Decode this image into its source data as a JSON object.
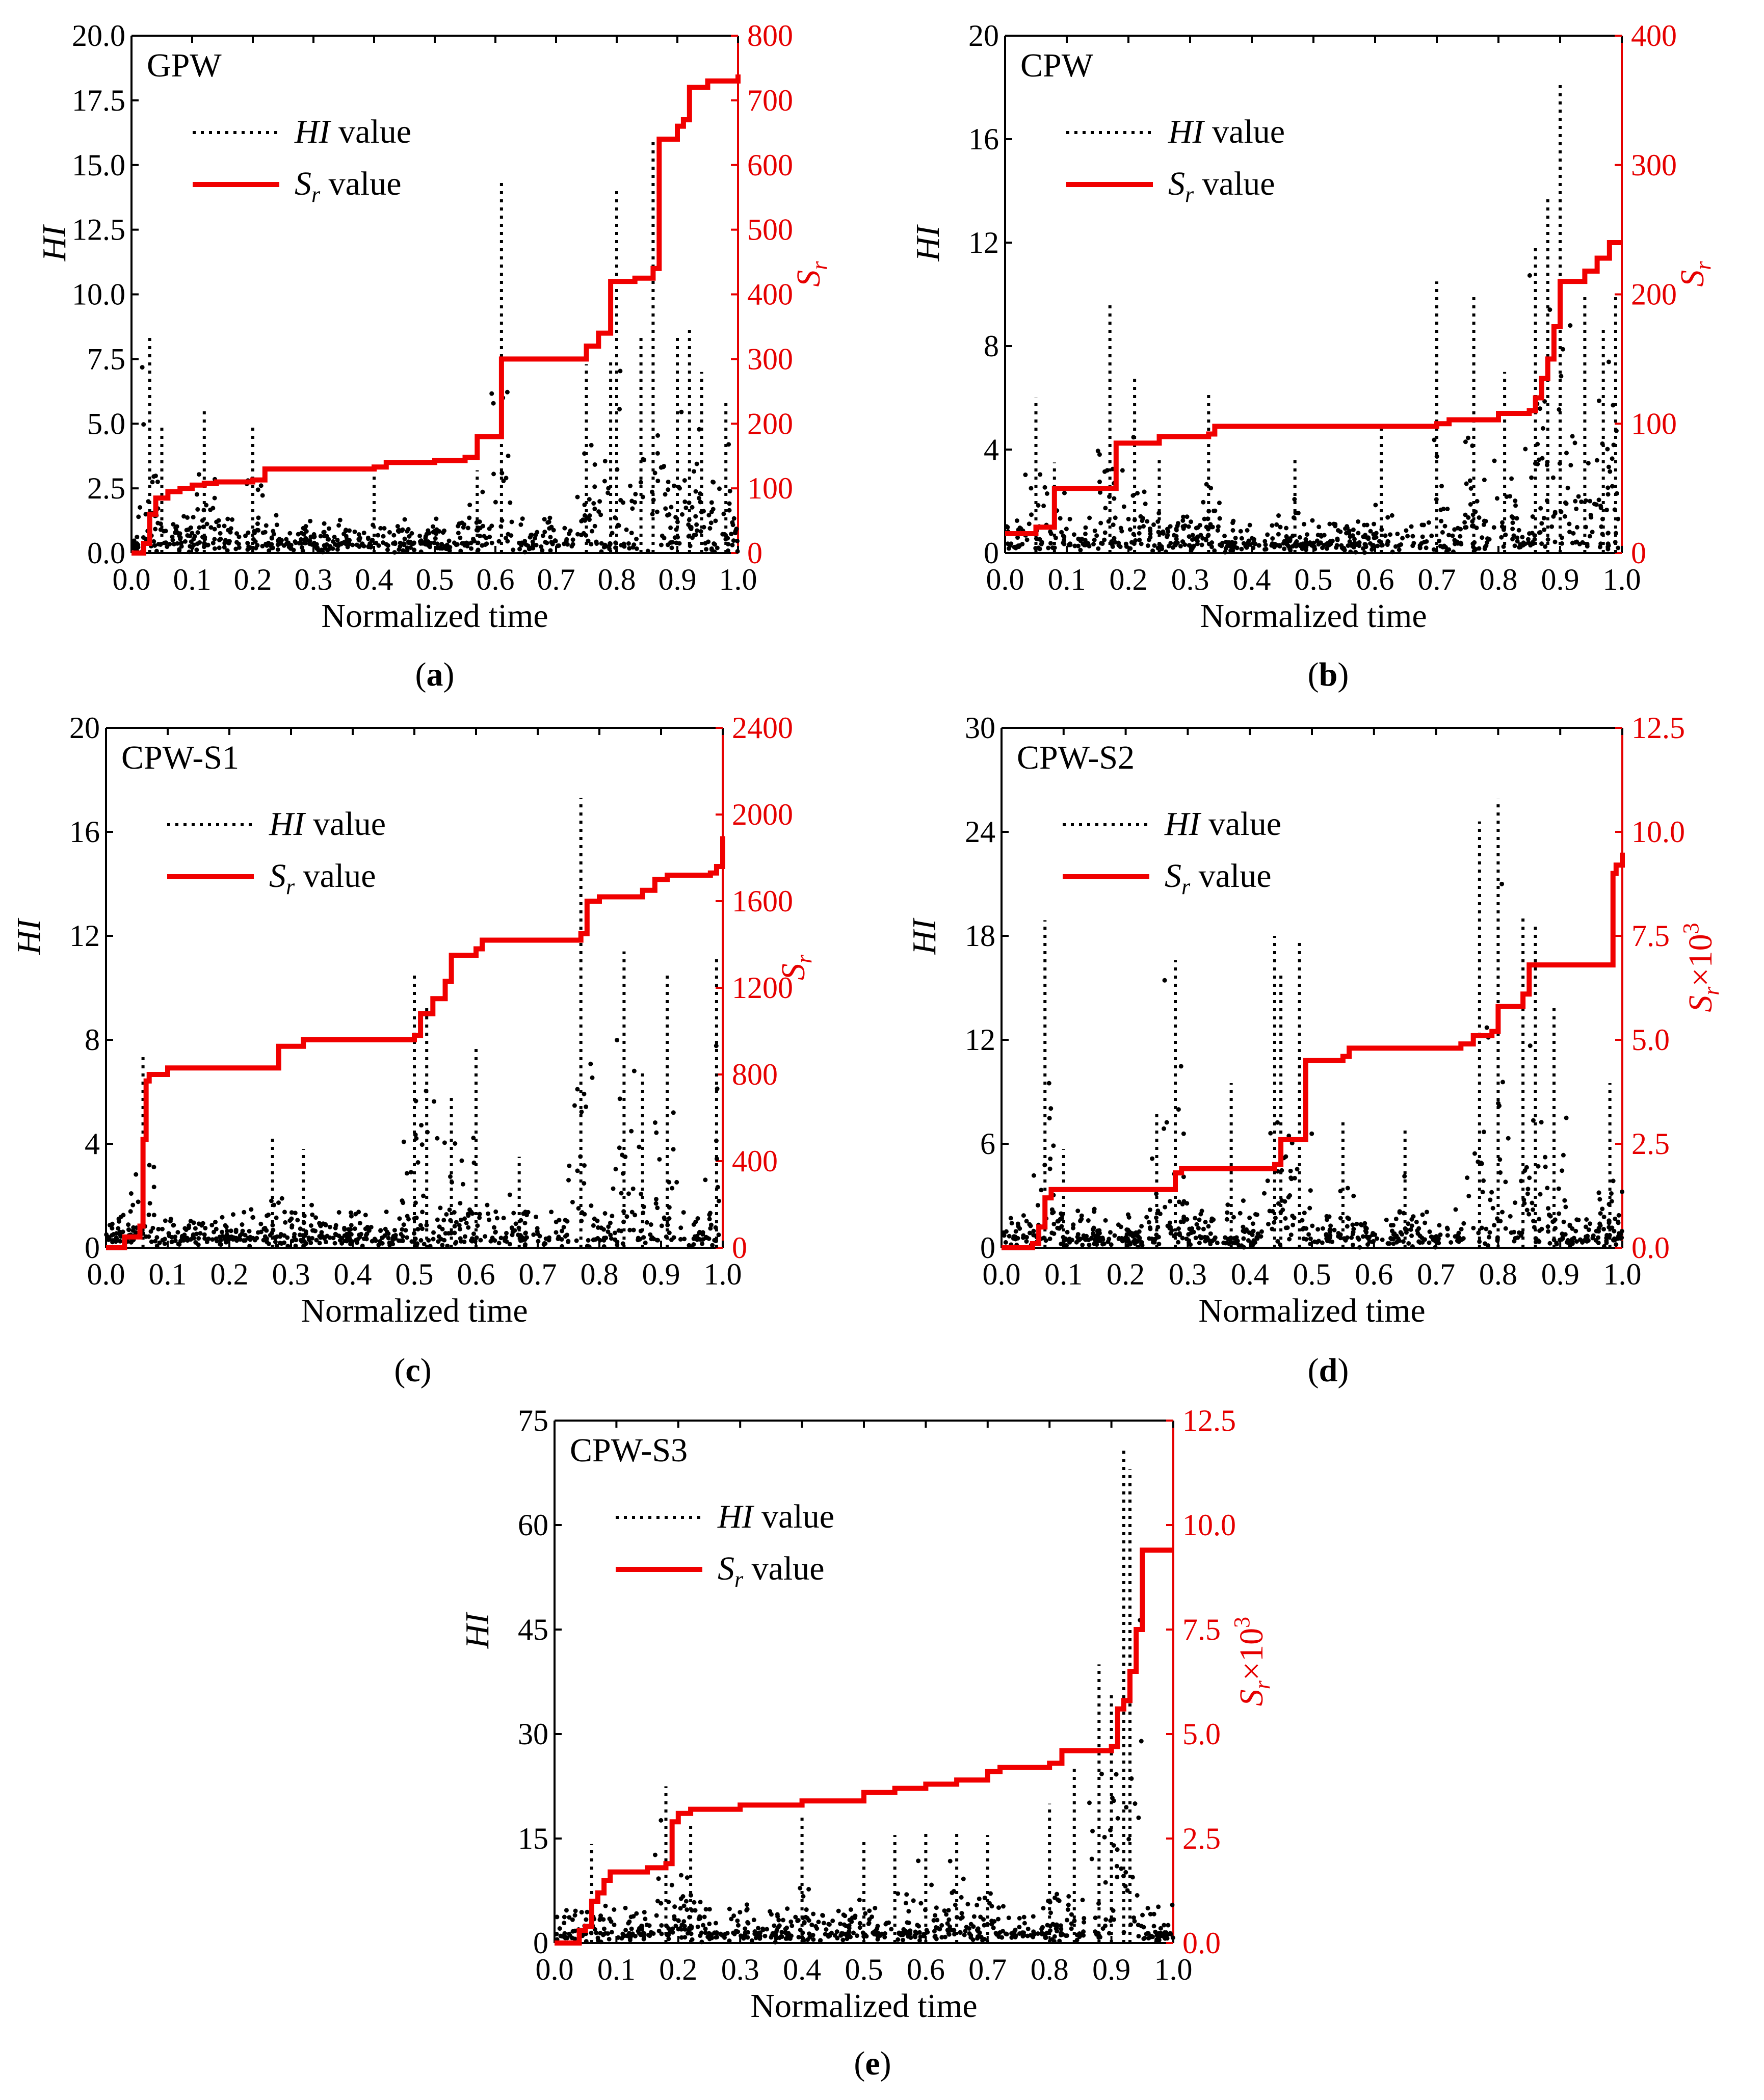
{
  "colors": {
    "hi": "#000000",
    "sr": "#f00000",
    "red_axis": "#e60000"
  },
  "chart_data": [
    {
      "type": "line",
      "panel_title": "GPW",
      "caption": "a",
      "xlabel": "Normalized time",
      "ylabel": "HI",
      "y2label": "S",
      "y2label_sub": "r",
      "y2label_suffix": "",
      "legend": [
        {
          "label_italic": "HI",
          "label_sub": "",
          "label_rest": " value",
          "series": "HI"
        },
        {
          "label_italic": "S",
          "label_sub": "r",
          "label_rest": " value",
          "series": "Sr"
        }
      ],
      "xlim": [
        0,
        1.0
      ],
      "xticks": [
        0.0,
        0.1,
        0.2,
        0.3,
        0.4,
        0.5,
        0.6,
        0.7,
        0.8,
        0.9,
        1.0
      ],
      "xtick_labels": [
        "0.0",
        "0.1",
        "0.2",
        "0.3",
        "0.4",
        "0.5",
        "0.6",
        "0.7",
        "0.8",
        "0.9",
        "1.0"
      ],
      "ylim": [
        0,
        20
      ],
      "yticks": [
        0,
        2.5,
        5,
        7.5,
        10,
        12.5,
        15,
        17.5,
        20
      ],
      "ytick_labels": [
        "0.0",
        "2.5",
        "5.0",
        "7.5",
        "10.0",
        "12.5",
        "15.0",
        "17.5",
        "20.0"
      ],
      "y2lim": [
        0,
        800
      ],
      "y2ticks": [
        0,
        100,
        200,
        300,
        400,
        500,
        600,
        700,
        800
      ],
      "y2tick_labels": [
        "0",
        "100",
        "200",
        "300",
        "400",
        "500",
        "600",
        "700",
        "800"
      ],
      "series": [
        {
          "name": "Sr value",
          "axis": "right",
          "x": [
            0.0,
            0.02,
            0.03,
            0.04,
            0.06,
            0.08,
            0.1,
            0.12,
            0.14,
            0.2,
            0.22,
            0.4,
            0.42,
            0.5,
            0.55,
            0.57,
            0.6,
            0.61,
            0.62,
            0.75,
            0.77,
            0.79,
            0.8,
            0.83,
            0.86,
            0.87,
            0.88,
            0.9,
            0.91,
            0.92,
            0.95,
            1.0
          ],
          "values": [
            0,
            15,
            60,
            85,
            95,
            100,
            105,
            108,
            110,
            113,
            130,
            133,
            140,
            143,
            148,
            180,
            180,
            300,
            300,
            320,
            340,
            420,
            420,
            425,
            440,
            640,
            640,
            660,
            670,
            720,
            730,
            740
          ]
        },
        {
          "name": "HI value",
          "axis": "left",
          "x": [
            0.03,
            0.05,
            0.12,
            0.2,
            0.4,
            0.57,
            0.61,
            0.75,
            0.79,
            0.8,
            0.84,
            0.86,
            0.9,
            0.92,
            0.94,
            0.98
          ],
          "values": [
            8.4,
            5.0,
            5.5,
            4.9,
            3.0,
            3.2,
            14.5,
            7.3,
            7.5,
            14.0,
            8.5,
            16.0,
            8.5,
            8.7,
            7.0,
            5.9
          ]
        }
      ]
    },
    {
      "type": "line",
      "panel_title": "CPW",
      "caption": "b",
      "xlabel": "Normalized time",
      "ylabel": "HI",
      "y2label": "S",
      "y2label_sub": "r",
      "y2label_suffix": "",
      "legend": [
        {
          "label_italic": "HI",
          "label_sub": "",
          "label_rest": " value",
          "series": "HI"
        },
        {
          "label_italic": "S",
          "label_sub": "r",
          "label_rest": " value",
          "series": "Sr"
        }
      ],
      "xlim": [
        0,
        1.0
      ],
      "xticks": [
        0.0,
        0.1,
        0.2,
        0.3,
        0.4,
        0.5,
        0.6,
        0.7,
        0.8,
        0.9,
        1.0
      ],
      "xtick_labels": [
        "0.0",
        "0.1",
        "0.2",
        "0.3",
        "0.4",
        "0.5",
        "0.6",
        "0.7",
        "0.8",
        "0.9",
        "1.0"
      ],
      "ylim": [
        0,
        20
      ],
      "yticks": [
        0,
        4,
        8,
        12,
        16,
        20
      ],
      "ytick_labels": [
        "0",
        "4",
        "8",
        "12",
        "16",
        "20"
      ],
      "y2lim": [
        0,
        400
      ],
      "y2ticks": [
        0,
        100,
        200,
        300,
        400
      ],
      "y2tick_labels": [
        "0",
        "100",
        "200",
        "300",
        "400"
      ],
      "series": [
        {
          "name": "Sr value",
          "axis": "right",
          "x": [
            0.0,
            0.04,
            0.05,
            0.08,
            0.17,
            0.18,
            0.25,
            0.33,
            0.34,
            0.7,
            0.72,
            0.8,
            0.85,
            0.86,
            0.87,
            0.88,
            0.89,
            0.9,
            0.91,
            0.94,
            0.96,
            0.98,
            1.0
          ],
          "values": [
            15,
            15,
            20,
            50,
            50,
            85,
            90,
            92,
            98,
            100,
            103,
            108,
            110,
            120,
            135,
            150,
            175,
            210,
            210,
            218,
            228,
            240,
            240
          ]
        },
        {
          "name": "HI value",
          "axis": "left",
          "x": [
            0.05,
            0.08,
            0.17,
            0.21,
            0.25,
            0.33,
            0.47,
            0.61,
            0.7,
            0.76,
            0.81,
            0.86,
            0.88,
            0.9,
            0.94,
            0.97,
            0.99
          ],
          "values": [
            6.0,
            3.5,
            9.6,
            6.9,
            3.6,
            6.3,
            3.7,
            4.8,
            10.5,
            10.0,
            7.0,
            11.8,
            13.7,
            18.1,
            10.0,
            8.7,
            10.0
          ]
        }
      ]
    },
    {
      "type": "line",
      "panel_title": "CPW-S1",
      "caption": "c",
      "xlabel": "Normalized time",
      "ylabel": "HI",
      "y2label": "S",
      "y2label_sub": "r",
      "y2label_suffix": "",
      "legend": [
        {
          "label_italic": "HI",
          "label_sub": "",
          "label_rest": " value",
          "series": "HI"
        },
        {
          "label_italic": "S",
          "label_sub": "r",
          "label_rest": " value",
          "series": "Sr"
        }
      ],
      "xlim": [
        0,
        1.0
      ],
      "xticks": [
        0.0,
        0.1,
        0.2,
        0.3,
        0.4,
        0.5,
        0.6,
        0.7,
        0.8,
        0.9,
        1.0
      ],
      "xtick_labels": [
        "0.0",
        "0.1",
        "0.2",
        "0.3",
        "0.4",
        "0.5",
        "0.6",
        "0.7",
        "0.8",
        "0.9",
        "1.0"
      ],
      "ylim": [
        0,
        20
      ],
      "yticks": [
        0,
        4,
        8,
        12,
        16,
        20
      ],
      "ytick_labels": [
        "0",
        "4",
        "8",
        "12",
        "16",
        "20"
      ],
      "y2lim": [
        0,
        2400
      ],
      "y2ticks": [
        0,
        400,
        800,
        1200,
        1600,
        2000,
        2400
      ],
      "y2tick_labels": [
        "0",
        "400",
        "800",
        "1200",
        "1600",
        "2000",
        "2400"
      ],
      "series": [
        {
          "name": "Sr value",
          "axis": "right",
          "x": [
            0.0,
            0.03,
            0.055,
            0.06,
            0.065,
            0.07,
            0.1,
            0.27,
            0.28,
            0.32,
            0.5,
            0.51,
            0.53,
            0.55,
            0.56,
            0.6,
            0.61,
            0.77,
            0.78,
            0.8,
            0.87,
            0.89,
            0.91,
            0.98,
            0.99,
            1.0
          ],
          "values": [
            0,
            50,
            100,
            500,
            770,
            800,
            830,
            830,
            930,
            960,
            980,
            1080,
            1150,
            1230,
            1350,
            1380,
            1420,
            1450,
            1600,
            1620,
            1650,
            1700,
            1720,
            1730,
            1760,
            1900
          ]
        },
        {
          "name": "HI value",
          "axis": "left",
          "x": [
            0.06,
            0.27,
            0.32,
            0.5,
            0.52,
            0.56,
            0.6,
            0.67,
            0.77,
            0.84,
            0.87,
            0.91,
            0.99
          ],
          "values": [
            7.5,
            4.3,
            3.8,
            10.5,
            9.3,
            5.8,
            7.8,
            3.5,
            17.3,
            11.4,
            6.8,
            10.6,
            11.2
          ]
        }
      ]
    },
    {
      "type": "line",
      "panel_title": "CPW-S2",
      "caption": "d",
      "xlabel": "Normalized time",
      "ylabel": "HI",
      "y2label": "S",
      "y2label_sub": "r",
      "y2label_suffix": "×10",
      "y2label_sup": "3",
      "legend": [
        {
          "label_italic": "HI",
          "label_sub": "",
          "label_rest": " value",
          "series": "HI"
        },
        {
          "label_italic": "S",
          "label_sub": "r",
          "label_rest": " value",
          "series": "Sr"
        }
      ],
      "xlim": [
        0,
        1.0
      ],
      "xticks": [
        0.0,
        0.1,
        0.2,
        0.3,
        0.4,
        0.5,
        0.6,
        0.7,
        0.8,
        0.9,
        1.0
      ],
      "xtick_labels": [
        "0.0",
        "0.1",
        "0.2",
        "0.3",
        "0.4",
        "0.5",
        "0.6",
        "0.7",
        "0.8",
        "0.9",
        "1.0"
      ],
      "ylim": [
        0,
        30
      ],
      "yticks": [
        0,
        6,
        12,
        18,
        24,
        30
      ],
      "ytick_labels": [
        "0",
        "6",
        "12",
        "18",
        "24",
        "30"
      ],
      "y2lim": [
        0,
        12.5
      ],
      "y2ticks": [
        0,
        2.5,
        5.0,
        7.5,
        10.0,
        12.5
      ],
      "y2tick_labels": [
        "0.0",
        "2.5",
        "5.0",
        "7.5",
        "10.0",
        "12.5"
      ],
      "series": [
        {
          "name": "Sr value",
          "axis": "right",
          "x": [
            0.0,
            0.05,
            0.06,
            0.07,
            0.08,
            0.27,
            0.28,
            0.29,
            0.44,
            0.45,
            0.48,
            0.49,
            0.55,
            0.56,
            0.74,
            0.76,
            0.79,
            0.8,
            0.84,
            0.85,
            0.98,
            0.985,
            0.99,
            1.0
          ],
          "values": [
            0,
            0.1,
            0.5,
            1.2,
            1.4,
            1.4,
            1.8,
            1.9,
            2.0,
            2.6,
            2.6,
            4.5,
            4.6,
            4.8,
            4.9,
            5.1,
            5.2,
            5.8,
            6.1,
            6.8,
            6.8,
            9.0,
            9.2,
            9.5
          ]
        },
        {
          "name": "HI value",
          "axis": "left",
          "x": [
            0.07,
            0.1,
            0.25,
            0.28,
            0.37,
            0.44,
            0.45,
            0.48,
            0.55,
            0.65,
            0.77,
            0.8,
            0.84,
            0.86,
            0.89,
            0.98
          ],
          "values": [
            18.9,
            5.7,
            8.0,
            16.6,
            9.5,
            18.0,
            16.0,
            17.7,
            7.5,
            7.0,
            24.6,
            25.9,
            19.2,
            18.8,
            14.0,
            9.5
          ]
        }
      ]
    },
    {
      "type": "line",
      "panel_title": "CPW-S3",
      "caption": "e",
      "xlabel": "Normalized time",
      "ylabel": "HI",
      "y2label": "S",
      "y2label_sub": "r",
      "y2label_suffix": "×10",
      "y2label_sup": "3",
      "legend": [
        {
          "label_italic": "HI",
          "label_sub": "",
          "label_rest": " value",
          "series": "HI"
        },
        {
          "label_italic": "S",
          "label_sub": "r",
          "label_rest": " value",
          "series": "Sr"
        }
      ],
      "xlim": [
        0,
        1.0
      ],
      "xticks": [
        0.0,
        0.1,
        0.2,
        0.3,
        0.4,
        0.5,
        0.6,
        0.7,
        0.8,
        0.9,
        1.0
      ],
      "xtick_labels": [
        "0.0",
        "0.1",
        "0.2",
        "0.3",
        "0.4",
        "0.5",
        "0.6",
        "0.7",
        "0.8",
        "0.9",
        "1.0"
      ],
      "ylim": [
        0,
        75
      ],
      "yticks": [
        0,
        15,
        30,
        45,
        60,
        75
      ],
      "ytick_labels": [
        "0",
        "15",
        "30",
        "45",
        "60",
        "75"
      ],
      "y2lim": [
        0,
        12.5
      ],
      "y2ticks": [
        0,
        2.5,
        5.0,
        7.5,
        10.0,
        12.5
      ],
      "y2tick_labels": [
        "0.0",
        "2.5",
        "5.0",
        "7.5",
        "10.0",
        "12.5"
      ],
      "series": [
        {
          "name": "Sr value",
          "axis": "right",
          "x": [
            0.0,
            0.04,
            0.05,
            0.06,
            0.07,
            0.08,
            0.09,
            0.15,
            0.18,
            0.19,
            0.2,
            0.22,
            0.3,
            0.4,
            0.5,
            0.55,
            0.6,
            0.65,
            0.7,
            0.72,
            0.8,
            0.82,
            0.9,
            0.91,
            0.92,
            0.93,
            0.94,
            0.95,
            1.0
          ],
          "values": [
            0,
            0.3,
            0.4,
            1.0,
            1.2,
            1.5,
            1.7,
            1.8,
            1.9,
            2.9,
            3.1,
            3.2,
            3.3,
            3.4,
            3.6,
            3.7,
            3.8,
            3.9,
            4.1,
            4.2,
            4.3,
            4.6,
            4.7,
            5.6,
            5.8,
            6.5,
            7.5,
            9.4,
            9.4
          ]
        },
        {
          "name": "HI value",
          "axis": "left",
          "x": [
            0.06,
            0.18,
            0.22,
            0.4,
            0.5,
            0.55,
            0.6,
            0.65,
            0.7,
            0.8,
            0.84,
            0.88,
            0.9,
            0.92,
            0.93
          ],
          "values": [
            14.2,
            22.5,
            17.0,
            18.0,
            15.0,
            15.5,
            16.0,
            16.0,
            15.5,
            20.0,
            25.0,
            40.0,
            36.0,
            71.0,
            68.0
          ]
        }
      ]
    }
  ]
}
